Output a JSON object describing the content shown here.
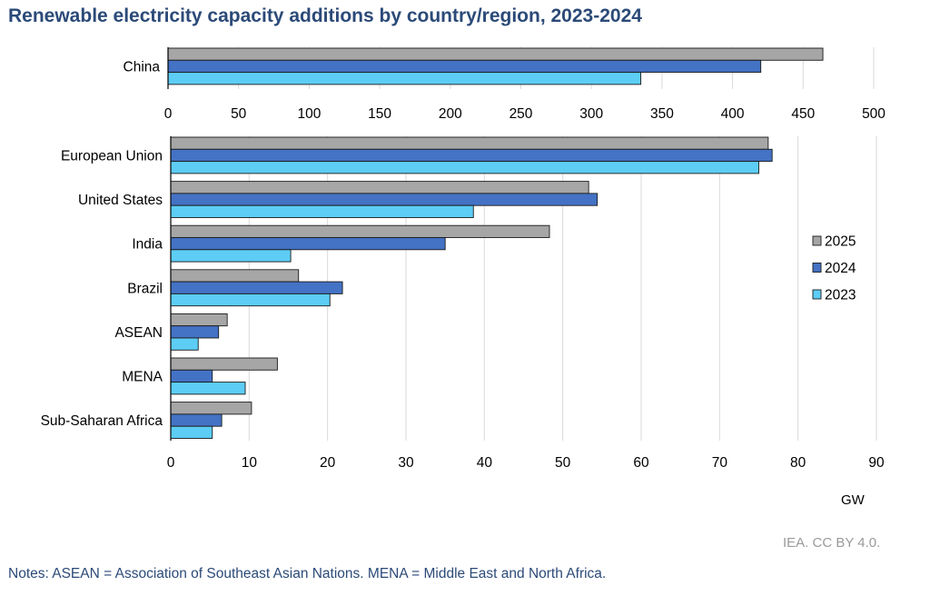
{
  "chart_data": {
    "type": "bar",
    "orientation": "horizontal",
    "title": "Renewable electricity capacity additions by country/region, 2023-2024",
    "xlabel": "GW",
    "ylabel": "",
    "legend": [
      "2025",
      "2024",
      "2023"
    ],
    "legend_position": "right",
    "grid": true,
    "colors": {
      "2025": "#a6a6a6",
      "2024": "#4472c4",
      "2023": "#5dcdf5"
    },
    "panels": [
      {
        "name": "top",
        "categories": [
          "China"
        ],
        "xlim": [
          0,
          500
        ],
        "xticks": [
          "0",
          "50",
          "100",
          "150",
          "200",
          "250",
          "300",
          "350",
          "400",
          "450",
          "500"
        ],
        "series": [
          {
            "name": "2025",
            "values": [
              464
            ]
          },
          {
            "name": "2024",
            "values": [
              420
            ]
          },
          {
            "name": "2023",
            "values": [
              335
            ]
          }
        ]
      },
      {
        "name": "bottom",
        "categories": [
          "European Union",
          "United States",
          "India",
          "Brazil",
          "ASEAN",
          "MENA",
          "Sub-Saharan Africa"
        ],
        "xlim": [
          0,
          90
        ],
        "xticks": [
          "0",
          "10",
          "20",
          "30",
          "40",
          "50",
          "60",
          "70",
          "80",
          "90"
        ],
        "series": [
          {
            "name": "2025",
            "values": [
              76.2,
              53.3,
              48.3,
              16.3,
              7.2,
              13.6,
              10.3
            ]
          },
          {
            "name": "2024",
            "values": [
              76.7,
              54.4,
              35.0,
              21.9,
              6.1,
              5.3,
              6.5
            ]
          },
          {
            "name": "2023",
            "values": [
              75.0,
              38.6,
              15.3,
              20.3,
              3.5,
              9.5,
              5.3
            ]
          }
        ]
      }
    ]
  },
  "unit_label": "GW",
  "credit": "IEA. CC BY 4.0.",
  "notes": "Notes: ASEAN = Association of Southeast Asian Nations. MENA = Middle East and North Africa."
}
